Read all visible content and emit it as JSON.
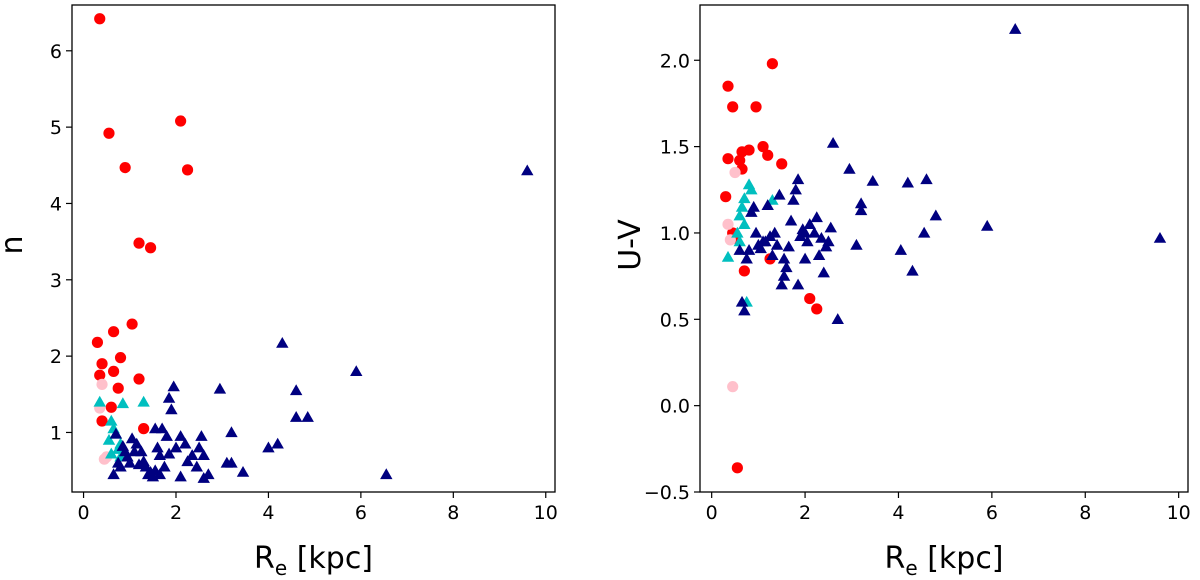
{
  "chart_data": [
    {
      "type": "scatter",
      "title": "",
      "xlabel_main": "R",
      "xlabel_sub": "e",
      "xlabel_unit": " [kpc]",
      "ylabel": "n",
      "xlim": [
        -0.25,
        10.2
      ],
      "ylim": [
        0.22,
        6.6
      ],
      "xticks": [
        0,
        2,
        4,
        6,
        8,
        10
      ],
      "xtick_labels": [
        "0",
        "2",
        "4",
        "6",
        "8",
        "10"
      ],
      "yticks": [
        1,
        2,
        3,
        4,
        5,
        6
      ],
      "ytick_labels": [
        "1",
        "2",
        "3",
        "4",
        "5",
        "6"
      ],
      "series": [
        {
          "name": "red-circles",
          "marker": "circle",
          "color": "#ff0000",
          "points": [
            [
              0.35,
              6.42
            ],
            [
              0.55,
              4.92
            ],
            [
              0.9,
              4.47
            ],
            [
              2.1,
              5.08
            ],
            [
              2.25,
              4.44
            ],
            [
              1.2,
              3.48
            ],
            [
              1.45,
              3.42
            ],
            [
              0.3,
              2.18
            ],
            [
              0.65,
              2.32
            ],
            [
              1.05,
              2.42
            ],
            [
              0.4,
              1.9
            ],
            [
              0.8,
              1.98
            ],
            [
              0.35,
              1.75
            ],
            [
              0.65,
              1.8
            ],
            [
              1.2,
              1.7
            ],
            [
              0.75,
              1.58
            ],
            [
              0.6,
              1.33
            ],
            [
              0.4,
              1.15
            ],
            [
              1.3,
              1.05
            ]
          ]
        },
        {
          "name": "pink-circles",
          "marker": "circle",
          "color": "#ffc0cb",
          "points": [
            [
              0.4,
              1.63
            ],
            [
              0.35,
              1.32
            ],
            [
              0.45,
              0.65
            ],
            [
              0.5,
              0.68
            ]
          ]
        },
        {
          "name": "cyan-triangles",
          "marker": "triangle",
          "color": "#00bfbf",
          "points": [
            [
              0.35,
              1.4
            ],
            [
              0.6,
              1.15
            ],
            [
              0.65,
              1.05
            ],
            [
              0.7,
              0.98
            ],
            [
              0.55,
              0.9
            ],
            [
              0.8,
              0.85
            ],
            [
              0.75,
              0.78
            ],
            [
              0.8,
              0.68
            ],
            [
              0.6,
              0.72
            ],
            [
              1.3,
              1.4
            ],
            [
              0.85,
              1.38
            ]
          ]
        },
        {
          "name": "navy-triangles",
          "marker": "triangle",
          "color": "#000080",
          "points": [
            [
              9.6,
              4.43
            ],
            [
              6.55,
              0.45
            ],
            [
              5.9,
              1.8
            ],
            [
              4.3,
              2.17
            ],
            [
              4.6,
              1.55
            ],
            [
              4.85,
              1.2
            ],
            [
              4.6,
              1.2
            ],
            [
              4.0,
              0.8
            ],
            [
              4.2,
              0.85
            ],
            [
              3.45,
              0.48
            ],
            [
              3.2,
              0.6
            ],
            [
              3.1,
              0.6
            ],
            [
              3.2,
              1.0
            ],
            [
              2.95,
              1.57
            ],
            [
              2.6,
              0.4
            ],
            [
              2.7,
              0.45
            ],
            [
              2.55,
              0.95
            ],
            [
              2.5,
              0.8
            ],
            [
              2.6,
              0.7
            ],
            [
              2.35,
              0.7
            ],
            [
              2.2,
              0.85
            ],
            [
              2.1,
              0.95
            ],
            [
              2.0,
              0.8
            ],
            [
              1.95,
              1.6
            ],
            [
              1.9,
              1.3
            ],
            [
              1.85,
              1.45
            ],
            [
              1.8,
              0.95
            ],
            [
              1.75,
              0.55
            ],
            [
              1.7,
              1.05
            ],
            [
              1.65,
              0.7
            ],
            [
              1.6,
              0.8
            ],
            [
              1.55,
              0.5
            ],
            [
              1.5,
              0.42
            ],
            [
              1.45,
              0.48
            ],
            [
              1.4,
              0.45
            ],
            [
              1.35,
              0.55
            ],
            [
              1.3,
              0.62
            ],
            [
              1.25,
              0.75
            ],
            [
              1.2,
              0.58
            ],
            [
              1.15,
              0.85
            ],
            [
              1.1,
              0.75
            ],
            [
              1.05,
              0.92
            ],
            [
              1.0,
              0.6
            ],
            [
              0.95,
              0.68
            ],
            [
              0.9,
              0.75
            ],
            [
              0.85,
              0.82
            ],
            [
              0.8,
              0.55
            ],
            [
              0.75,
              0.6
            ],
            [
              0.7,
              0.98
            ],
            [
              0.65,
              0.45
            ],
            [
              2.1,
              0.42
            ],
            [
              1.85,
              0.72
            ],
            [
              2.25,
              0.62
            ],
            [
              1.55,
              1.05
            ],
            [
              1.65,
              0.45
            ],
            [
              2.45,
              0.55
            ]
          ]
        }
      ]
    },
    {
      "type": "scatter",
      "title": "",
      "xlabel_main": "R",
      "xlabel_sub": "e",
      "xlabel_unit": " [kpc]",
      "ylabel": "U-V",
      "xlim": [
        -0.25,
        10.2
      ],
      "ylim": [
        -0.5,
        2.32
      ],
      "xticks": [
        0,
        2,
        4,
        6,
        8,
        10
      ],
      "xtick_labels": [
        "0",
        "2",
        "4",
        "6",
        "8",
        "10"
      ],
      "yticks": [
        -0.5,
        0.0,
        0.5,
        1.0,
        1.5,
        2.0
      ],
      "ytick_labels": [
        "−0.5",
        "0.0",
        "0.5",
        "1.0",
        "1.5",
        "2.0"
      ],
      "series": [
        {
          "name": "red-circles",
          "marker": "circle",
          "color": "#ff0000",
          "points": [
            [
              1.3,
              1.98
            ],
            [
              0.35,
              1.85
            ],
            [
              0.45,
              1.73
            ],
            [
              0.95,
              1.73
            ],
            [
              1.1,
              1.5
            ],
            [
              0.8,
              1.48
            ],
            [
              0.65,
              1.47
            ],
            [
              1.2,
              1.45
            ],
            [
              0.35,
              1.43
            ],
            [
              0.6,
              1.42
            ],
            [
              1.5,
              1.4
            ],
            [
              0.65,
              1.37
            ],
            [
              0.3,
              1.21
            ],
            [
              0.45,
              1.0
            ],
            [
              0.5,
              0.97
            ],
            [
              1.25,
              0.85
            ],
            [
              0.7,
              0.78
            ],
            [
              2.1,
              0.62
            ],
            [
              2.25,
              0.56
            ],
            [
              0.55,
              -0.36
            ]
          ]
        },
        {
          "name": "pink-circles",
          "marker": "circle",
          "color": "#ffc0cb",
          "points": [
            [
              0.5,
              1.35
            ],
            [
              0.35,
              1.05
            ],
            [
              0.4,
              0.96
            ],
            [
              0.45,
              0.11
            ]
          ]
        },
        {
          "name": "cyan-triangles",
          "marker": "triangle",
          "color": "#00bfbf",
          "points": [
            [
              0.8,
              1.28
            ],
            [
              0.85,
              1.25
            ],
            [
              0.7,
              1.2
            ],
            [
              0.65,
              1.15
            ],
            [
              0.6,
              1.1
            ],
            [
              0.7,
              1.05
            ],
            [
              0.55,
              1.0
            ],
            [
              0.6,
              0.95
            ],
            [
              0.35,
              0.86
            ],
            [
              1.3,
              1.19
            ],
            [
              0.75,
              0.6
            ]
          ]
        },
        {
          "name": "navy-triangles",
          "marker": "triangle",
          "color": "#000080",
          "points": [
            [
              6.5,
              2.18
            ],
            [
              9.6,
              0.97
            ],
            [
              5.9,
              1.04
            ],
            [
              4.8,
              1.1
            ],
            [
              4.6,
              1.31
            ],
            [
              4.55,
              1.0
            ],
            [
              4.2,
              1.29
            ],
            [
              4.3,
              0.78
            ],
            [
              4.05,
              0.9
            ],
            [
              3.45,
              1.3
            ],
            [
              3.2,
              1.17
            ],
            [
              3.2,
              1.13
            ],
            [
              3.1,
              0.93
            ],
            [
              2.95,
              1.37
            ],
            [
              2.6,
              1.52
            ],
            [
              2.7,
              0.5
            ],
            [
              2.55,
              1.03
            ],
            [
              2.5,
              0.95
            ],
            [
              2.45,
              0.92
            ],
            [
              2.4,
              0.77
            ],
            [
              2.3,
              0.87
            ],
            [
              2.25,
              1.09
            ],
            [
              2.2,
              1.0
            ],
            [
              2.1,
              1.05
            ],
            [
              2.05,
              0.95
            ],
            [
              2.0,
              1.0
            ],
            [
              1.95,
              1.02
            ],
            [
              1.9,
              0.98
            ],
            [
              1.85,
              1.31
            ],
            [
              1.8,
              1.25
            ],
            [
              1.75,
              1.19
            ],
            [
              1.7,
              1.07
            ],
            [
              1.65,
              0.92
            ],
            [
              1.6,
              0.8
            ],
            [
              1.55,
              0.75
            ],
            [
              1.5,
              0.7
            ],
            [
              1.45,
              1.22
            ],
            [
              1.4,
              0.93
            ],
            [
              1.35,
              1.0
            ],
            [
              1.3,
              0.87
            ],
            [
              1.25,
              0.98
            ],
            [
              1.2,
              1.16
            ],
            [
              1.1,
              0.95
            ],
            [
              1.05,
              0.91
            ],
            [
              1.0,
              0.93
            ],
            [
              0.95,
              1.0
            ],
            [
              0.9,
              1.15
            ],
            [
              0.85,
              1.12
            ],
            [
              0.8,
              0.9
            ],
            [
              0.75,
              0.85
            ],
            [
              0.7,
              0.55
            ],
            [
              0.65,
              0.6
            ],
            [
              1.15,
              0.95
            ],
            [
              2.0,
              0.85
            ],
            [
              1.85,
              0.7
            ],
            [
              2.35,
              0.97
            ],
            [
              0.6,
              0.9
            ],
            [
              1.55,
              0.85
            ]
          ]
        }
      ]
    }
  ]
}
